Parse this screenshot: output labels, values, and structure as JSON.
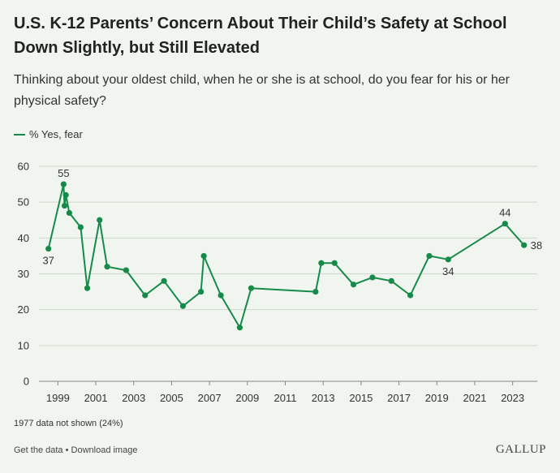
{
  "title": "U.S. K-12 Parents’ Concern About Their Child’s Safety at School Down Slightly, but Still Elevated",
  "subtitle": "Thinking about your oldest child, when he or she is at school, do you fear for his or her physical safety?",
  "footnote": "1977 data not shown (24%)",
  "links": {
    "get_data": "Get the data",
    "separator": " • ",
    "download": "Download image"
  },
  "brand": "GALLUP",
  "colors": {
    "series": "#168a48",
    "grid": "#cfd8cc",
    "text": "#333333"
  },
  "chart_data": {
    "type": "line",
    "title": "U.S. K-12 Parents’ Concern About Their Child’s Safety at School Down Slightly, but Still Elevated",
    "xlabel": "",
    "ylabel": "",
    "ylim": [
      0,
      60
    ],
    "xlim": [
      1998,
      2024.3
    ],
    "y_ticks": [
      0,
      10,
      20,
      30,
      40,
      50,
      60
    ],
    "x_ticks": [
      1999,
      2001,
      2003,
      2005,
      2007,
      2009,
      2011,
      2013,
      2015,
      2017,
      2019,
      2021,
      2023
    ],
    "grid": true,
    "legend": "top-left",
    "series": [
      {
        "name": "% Yes, fear",
        "x": [
          1998.5,
          1999.3,
          1999.35,
          1999.42,
          1999.6,
          2000.2,
          2000.55,
          2001.2,
          2001.6,
          2002.6,
          2003.6,
          2004.6,
          2005.6,
          2006.55,
          2006.7,
          2007.6,
          2008.6,
          2009.2,
          2012.6,
          2012.9,
          2013.6,
          2014.6,
          2015.6,
          2016.6,
          2017.6,
          2018.6,
          2019.6,
          2022.6,
          2023.6
        ],
        "values": [
          37,
          55,
          49,
          52,
          47,
          43,
          26,
          45,
          32,
          31,
          24,
          28,
          21,
          25,
          35,
          24,
          15,
          26,
          25,
          33,
          33,
          27,
          29,
          28,
          24,
          35,
          34,
          44,
          38
        ],
        "labels": [
          {
            "index": 0,
            "text": "37",
            "position": "below"
          },
          {
            "index": 1,
            "text": "55",
            "position": "above"
          },
          {
            "index": 26,
            "text": "34",
            "position": "below"
          },
          {
            "index": 27,
            "text": "44",
            "position": "above"
          },
          {
            "index": 28,
            "text": "38",
            "position": "right"
          }
        ]
      }
    ]
  }
}
